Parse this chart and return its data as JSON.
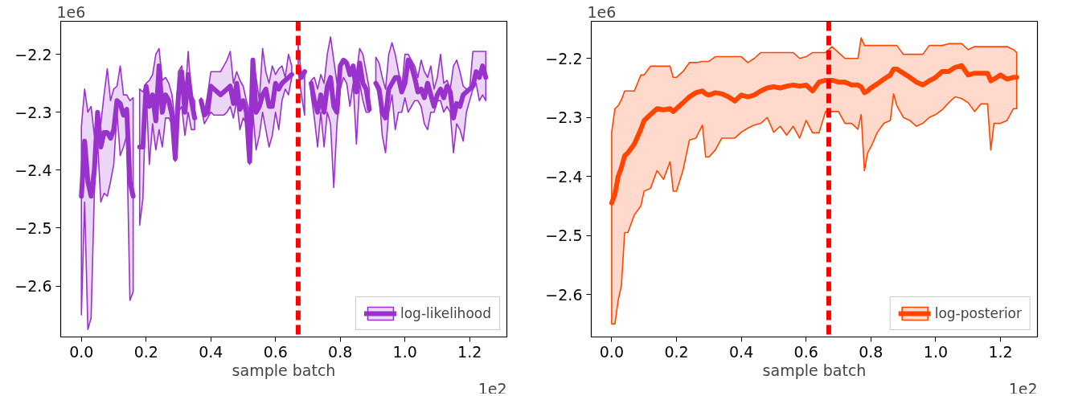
{
  "chart_data": [
    {
      "type": "line",
      "xlabel": "sample batch",
      "annotations": [
        "1e6",
        "1e2"
      ],
      "legend": "bottom right",
      "grid": false,
      "xlim": [
        -0.064,
        1.315
      ],
      "ylim": [
        -2.688,
        -2.143
      ],
      "xticks": [
        {
          "value": 0,
          "label": "0.0"
        },
        {
          "value": 0.2,
          "label": "0.2"
        },
        {
          "value": 0.4,
          "label": "0.4"
        },
        {
          "value": 0.6,
          "label": "0.6"
        },
        {
          "value": 0.8,
          "label": "0.8"
        },
        {
          "value": 1.0,
          "label": "1.0"
        },
        {
          "value": 1.2,
          "label": "1.2"
        }
      ],
      "yticks": [
        {
          "value": -2.2,
          "label": "−2.2"
        },
        {
          "value": -2.3,
          "label": "−2.3"
        },
        {
          "value": -2.4,
          "label": "−2.4"
        },
        {
          "value": -2.5,
          "label": "−2.5"
        },
        {
          "value": -2.6,
          "label": "−2.6"
        }
      ],
      "ref_lines": [
        {
          "axis": "x",
          "value": 0.67,
          "color": "#ff0000",
          "line_style": "dashed"
        }
      ],
      "x": [
        0,
        0.01,
        0.02,
        0.03,
        0.04,
        0.05,
        0.06,
        0.07,
        0.08,
        0.09,
        0.1,
        0.11,
        0.12,
        0.13,
        0.14,
        0.15,
        0.16,
        0.17,
        0.18,
        0.19,
        0.2,
        0.21,
        0.22,
        0.23,
        0.24,
        0.25,
        0.26,
        0.27,
        0.28,
        0.29,
        0.3,
        0.31,
        0.32,
        0.33,
        0.34,
        0.35,
        0.36,
        0.37,
        0.38,
        0.39,
        0.4,
        0.41,
        0.42,
        0.43,
        0.44,
        0.45,
        0.46,
        0.47,
        0.48,
        0.49,
        0.5,
        0.51,
        0.52,
        0.53,
        0.54,
        0.55,
        0.56,
        0.57,
        0.58,
        0.59,
        0.6,
        0.61,
        0.62,
        0.63,
        0.64,
        0.65,
        0.66,
        0.67,
        0.68,
        0.69,
        0.7,
        0.71,
        0.72,
        0.73,
        0.74,
        0.75,
        0.76,
        0.77,
        0.78,
        0.79,
        0.8,
        0.81,
        0.82,
        0.83,
        0.84,
        0.85,
        0.86,
        0.87,
        0.88,
        0.89,
        0.9,
        0.91,
        0.92,
        0.93,
        0.94,
        0.95,
        0.96,
        0.97,
        0.98,
        0.99,
        1.0,
        1.01,
        1.02,
        1.03,
        1.04,
        1.05,
        1.06,
        1.07,
        1.08,
        1.09,
        1.1,
        1.11,
        1.12,
        1.13,
        1.14,
        1.15,
        1.16,
        1.17,
        1.18,
        1.19,
        1.2,
        1.21,
        1.22,
        1.23,
        1.24,
        1.25
      ],
      "series": [
        {
          "name": "log-likelihood",
          "color": "#9932cc",
          "values": [
            -2.445,
            -2.35,
            -2.42,
            -2.445,
            -2.4,
            -2.3,
            -2.36,
            -2.335,
            -2.335,
            -2.345,
            -2.33,
            -2.28,
            -2.285,
            -2.305,
            -2.295,
            -2.42,
            -2.445,
            null,
            -2.36,
            -2.36,
            -2.255,
            -2.29,
            -2.27,
            -2.315,
            -2.22,
            -2.3,
            -2.27,
            -2.28,
            -2.305,
            -2.38,
            -2.27,
            -2.23,
            -2.3,
            -2.235,
            -2.28,
            -2.31,
            null,
            -2.28,
            -2.305,
            -2.3,
            -2.255,
            -2.26,
            -2.265,
            -2.27,
            -2.265,
            -2.26,
            -2.255,
            -2.285,
            -2.25,
            -2.295,
            -2.28,
            -2.3,
            -2.385,
            -2.21,
            -2.3,
            -2.29,
            -2.27,
            -2.26,
            -2.29,
            -2.29,
            -2.25,
            -2.26,
            -2.25,
            -2.245,
            -2.24,
            -2.235,
            null,
            -2.225,
            -2.24,
            -2.23,
            null,
            -2.25,
            -2.28,
            -2.3,
            -2.27,
            -2.3,
            -2.255,
            -2.24,
            -2.29,
            -2.3,
            -2.22,
            -2.21,
            -2.215,
            -2.235,
            -2.22,
            -2.265,
            -2.215,
            -2.25,
            -2.26,
            -2.295,
            null,
            -2.25,
            -2.26,
            -2.3,
            -2.31,
            -2.26,
            -2.25,
            -2.24,
            -2.24,
            -2.265,
            -2.25,
            -2.21,
            -2.22,
            -2.24,
            -2.265,
            -2.26,
            -2.275,
            -2.25,
            -2.27,
            -2.29,
            -2.27,
            -2.26,
            -2.275,
            -2.255,
            -2.265,
            -2.31,
            -2.285,
            -2.29,
            -2.27,
            -2.265,
            -2.26,
            -2.255,
            -2.23,
            -2.24,
            -2.22,
            -2.24
          ],
          "upper": [
            -2.325,
            -2.26,
            -2.3,
            -2.29,
            -2.34,
            -2.3,
            -2.32,
            -2.27,
            -2.225,
            -2.28,
            -2.26,
            -2.255,
            -2.22,
            -2.27,
            -2.27,
            -2.28,
            -2.275,
            null,
            -2.26,
            -2.265,
            -2.25,
            -2.245,
            -2.235,
            -2.2,
            -2.19,
            -2.245,
            -2.24,
            -2.25,
            -2.27,
            -2.32,
            -2.23,
            -2.22,
            -2.28,
            -2.195,
            -2.27,
            -2.28,
            null,
            -2.275,
            -2.3,
            -2.27,
            -2.23,
            -2.23,
            -2.23,
            -2.23,
            -2.22,
            -2.21,
            -2.195,
            -2.25,
            -2.23,
            -2.245,
            -2.255,
            -2.28,
            -2.3,
            -2.21,
            -2.24,
            -2.28,
            -2.19,
            -2.23,
            -2.25,
            -2.22,
            -2.235,
            -2.225,
            -2.22,
            -2.24,
            -2.2,
            -2.22,
            null,
            -2.185,
            -2.235,
            -2.23,
            null,
            -2.245,
            -2.24,
            -2.26,
            -2.235,
            -2.25,
            -2.2,
            -2.17,
            -2.21,
            -2.25,
            -2.22,
            -2.21,
            -2.21,
            -2.23,
            -2.22,
            -2.235,
            -2.19,
            -2.2,
            -2.23,
            -2.26,
            null,
            -2.205,
            -2.215,
            -2.24,
            -2.26,
            -2.2,
            -2.18,
            -2.2,
            -2.23,
            -2.26,
            -2.2,
            -2.2,
            -2.21,
            -2.22,
            -2.24,
            -2.21,
            -2.23,
            -2.24,
            -2.22,
            -2.26,
            -2.24,
            -2.2,
            -2.25,
            -2.245,
            -2.26,
            -2.22,
            -2.21,
            -2.23,
            -2.255,
            -2.26,
            -2.26,
            -2.195,
            -2.195,
            -2.195,
            -2.195,
            -2.195
          ],
          "lower": [
            -2.65,
            -2.455,
            -2.675,
            -2.655,
            -2.44,
            -2.35,
            -2.455,
            -2.44,
            -2.445,
            -2.42,
            -2.39,
            -2.3,
            -2.375,
            -2.36,
            -2.34,
            -2.625,
            -2.61,
            null,
            -2.495,
            -2.45,
            -2.26,
            -2.39,
            -2.32,
            -2.365,
            -2.33,
            -2.36,
            -2.31,
            -2.31,
            -2.32,
            -2.385,
            -2.3,
            -2.29,
            -2.34,
            -2.3,
            -2.33,
            -2.33,
            null,
            -2.29,
            -2.32,
            -2.31,
            -2.3,
            -2.305,
            -2.305,
            -2.305,
            -2.305,
            -2.3,
            -2.29,
            -2.31,
            -2.28,
            -2.33,
            -2.31,
            -2.32,
            -2.39,
            -2.3,
            -2.365,
            -2.34,
            -2.3,
            -2.33,
            -2.36,
            -2.34,
            -2.3,
            -2.33,
            -2.28,
            -2.26,
            -2.27,
            -2.24,
            null,
            -2.23,
            -2.27,
            -2.305,
            null,
            -2.27,
            -2.31,
            -2.36,
            -2.3,
            -2.36,
            -2.3,
            -2.32,
            -2.43,
            -2.32,
            -2.26,
            -2.24,
            -2.25,
            -2.29,
            -2.25,
            -2.355,
            -2.25,
            -2.28,
            -2.3,
            -2.3,
            null,
            -2.255,
            -2.27,
            -2.34,
            -2.37,
            -2.3,
            -2.27,
            -2.33,
            -2.3,
            -2.3,
            -2.275,
            -2.3,
            -2.29,
            -2.28,
            -2.28,
            -2.29,
            -2.32,
            -2.33,
            -2.3,
            -2.3,
            -2.28,
            -2.28,
            -2.3,
            -2.29,
            -2.3,
            -2.37,
            -2.32,
            -2.33,
            -2.35,
            -2.3,
            -2.28,
            -2.26,
            -2.25,
            -2.28,
            -2.27,
            -2.28
          ]
        }
      ]
    },
    {
      "type": "line",
      "xlabel": "sample batch",
      "annotations": [
        "1e6",
        "1e2"
      ],
      "legend": "bottom right",
      "grid": false,
      "xlim": [
        -0.063,
        1.314
      ],
      "ylim": [
        -2.672,
        -2.137
      ],
      "xticks": [
        {
          "value": 0,
          "label": "0.0"
        },
        {
          "value": 0.2,
          "label": "0.2"
        },
        {
          "value": 0.4,
          "label": "0.4"
        },
        {
          "value": 0.6,
          "label": "0.6"
        },
        {
          "value": 0.8,
          "label": "0.8"
        },
        {
          "value": 1.0,
          "label": "1.0"
        },
        {
          "value": 1.2,
          "label": "1.2"
        }
      ],
      "yticks": [
        {
          "value": -2.2,
          "label": "−2.2"
        },
        {
          "value": -2.3,
          "label": "−2.3"
        },
        {
          "value": -2.4,
          "label": "−2.4"
        },
        {
          "value": -2.5,
          "label": "−2.5"
        },
        {
          "value": -2.6,
          "label": "−2.6"
        }
      ],
      "ref_lines": [
        {
          "axis": "x",
          "value": 0.67,
          "color": "#ff0000",
          "line_style": "dashed"
        }
      ],
      "x": [
        0,
        0.01,
        0.02,
        0.03,
        0.04,
        0.05,
        0.07,
        0.09,
        0.1,
        0.12,
        0.14,
        0.16,
        0.18,
        0.19,
        0.2,
        0.22,
        0.24,
        0.26,
        0.28,
        0.29,
        0.3,
        0.32,
        0.34,
        0.36,
        0.38,
        0.4,
        0.42,
        0.44,
        0.46,
        0.48,
        0.5,
        0.52,
        0.54,
        0.56,
        0.58,
        0.6,
        0.62,
        0.64,
        0.66,
        0.68,
        0.7,
        0.72,
        0.74,
        0.76,
        0.77,
        0.78,
        0.79,
        0.8,
        0.82,
        0.84,
        0.86,
        0.87,
        0.88,
        0.9,
        0.92,
        0.94,
        0.96,
        0.98,
        1.0,
        1.02,
        1.04,
        1.06,
        1.08,
        1.1,
        1.12,
        1.14,
        1.16,
        1.17,
        1.18,
        1.2,
        1.22,
        1.24,
        1.25
      ],
      "series": [
        {
          "name": "log-posterior",
          "color": "#ff4500",
          "values": [
            -2.445,
            -2.43,
            -2.4,
            -2.385,
            -2.365,
            -2.36,
            -2.345,
            -2.32,
            -2.305,
            -2.295,
            -2.285,
            -2.287,
            -2.285,
            -2.29,
            -2.285,
            -2.275,
            -2.265,
            -2.258,
            -2.255,
            -2.26,
            -2.262,
            -2.258,
            -2.26,
            -2.265,
            -2.272,
            -2.262,
            -2.265,
            -2.262,
            -2.255,
            -2.25,
            -2.248,
            -2.25,
            -2.247,
            -2.245,
            -2.247,
            -2.245,
            -2.255,
            -2.24,
            -2.237,
            -2.237,
            -2.24,
            -2.24,
            -2.245,
            -2.245,
            -2.248,
            -2.258,
            -2.255,
            -2.25,
            -2.243,
            -2.235,
            -2.228,
            -2.218,
            -2.218,
            -2.225,
            -2.232,
            -2.24,
            -2.245,
            -2.238,
            -2.232,
            -2.222,
            -2.222,
            -2.215,
            -2.212,
            -2.228,
            -2.225,
            -2.225,
            -2.225,
            -2.238,
            -2.235,
            -2.228,
            -2.235,
            -2.232,
            -2.232
          ],
          "upper": [
            -2.325,
            -2.285,
            -2.28,
            -2.27,
            -2.255,
            -2.255,
            -2.255,
            -2.228,
            -2.228,
            -2.213,
            -2.213,
            -2.213,
            -2.213,
            -2.232,
            -2.232,
            -2.222,
            -2.207,
            -2.207,
            -2.205,
            -2.205,
            -2.205,
            -2.197,
            -2.197,
            -2.197,
            -2.197,
            -2.197,
            -2.207,
            -2.2,
            -2.19,
            -2.19,
            -2.19,
            -2.19,
            -2.19,
            -2.19,
            -2.2,
            -2.197,
            -2.19,
            -2.19,
            -2.19,
            -2.18,
            -2.19,
            -2.2,
            -2.2,
            -2.2,
            -2.165,
            -2.178,
            -2.178,
            -2.178,
            -2.178,
            -2.178,
            -2.178,
            -2.178,
            -2.178,
            -2.193,
            -2.193,
            -2.193,
            -2.193,
            -2.178,
            -2.178,
            -2.178,
            -2.175,
            -2.175,
            -2.175,
            -2.185,
            -2.18,
            -2.18,
            -2.18,
            -2.18,
            -2.18,
            -2.18,
            -2.18,
            -2.185,
            -2.19
          ],
          "lower": [
            -2.65,
            -2.65,
            -2.61,
            -2.585,
            -2.495,
            -2.495,
            -2.465,
            -2.45,
            -2.425,
            -2.42,
            -2.39,
            -2.405,
            -2.375,
            -2.425,
            -2.425,
            -2.39,
            -2.338,
            -2.335,
            -2.313,
            -2.367,
            -2.367,
            -2.355,
            -2.335,
            -2.335,
            -2.335,
            -2.325,
            -2.318,
            -2.313,
            -2.31,
            -2.3,
            -2.325,
            -2.315,
            -2.33,
            -2.315,
            -2.335,
            -2.305,
            -2.326,
            -2.326,
            -2.29,
            -2.29,
            -2.29,
            -2.31,
            -2.31,
            -2.32,
            -2.295,
            -2.39,
            -2.36,
            -2.35,
            -2.325,
            -2.31,
            -2.305,
            -2.26,
            -2.28,
            -2.3,
            -2.305,
            -2.315,
            -2.31,
            -2.3,
            -2.295,
            -2.287,
            -2.275,
            -2.265,
            -2.268,
            -2.275,
            -2.29,
            -2.277,
            -2.277,
            -2.355,
            -2.31,
            -2.31,
            -2.305,
            -2.285,
            -2.285
          ]
        }
      ]
    }
  ]
}
